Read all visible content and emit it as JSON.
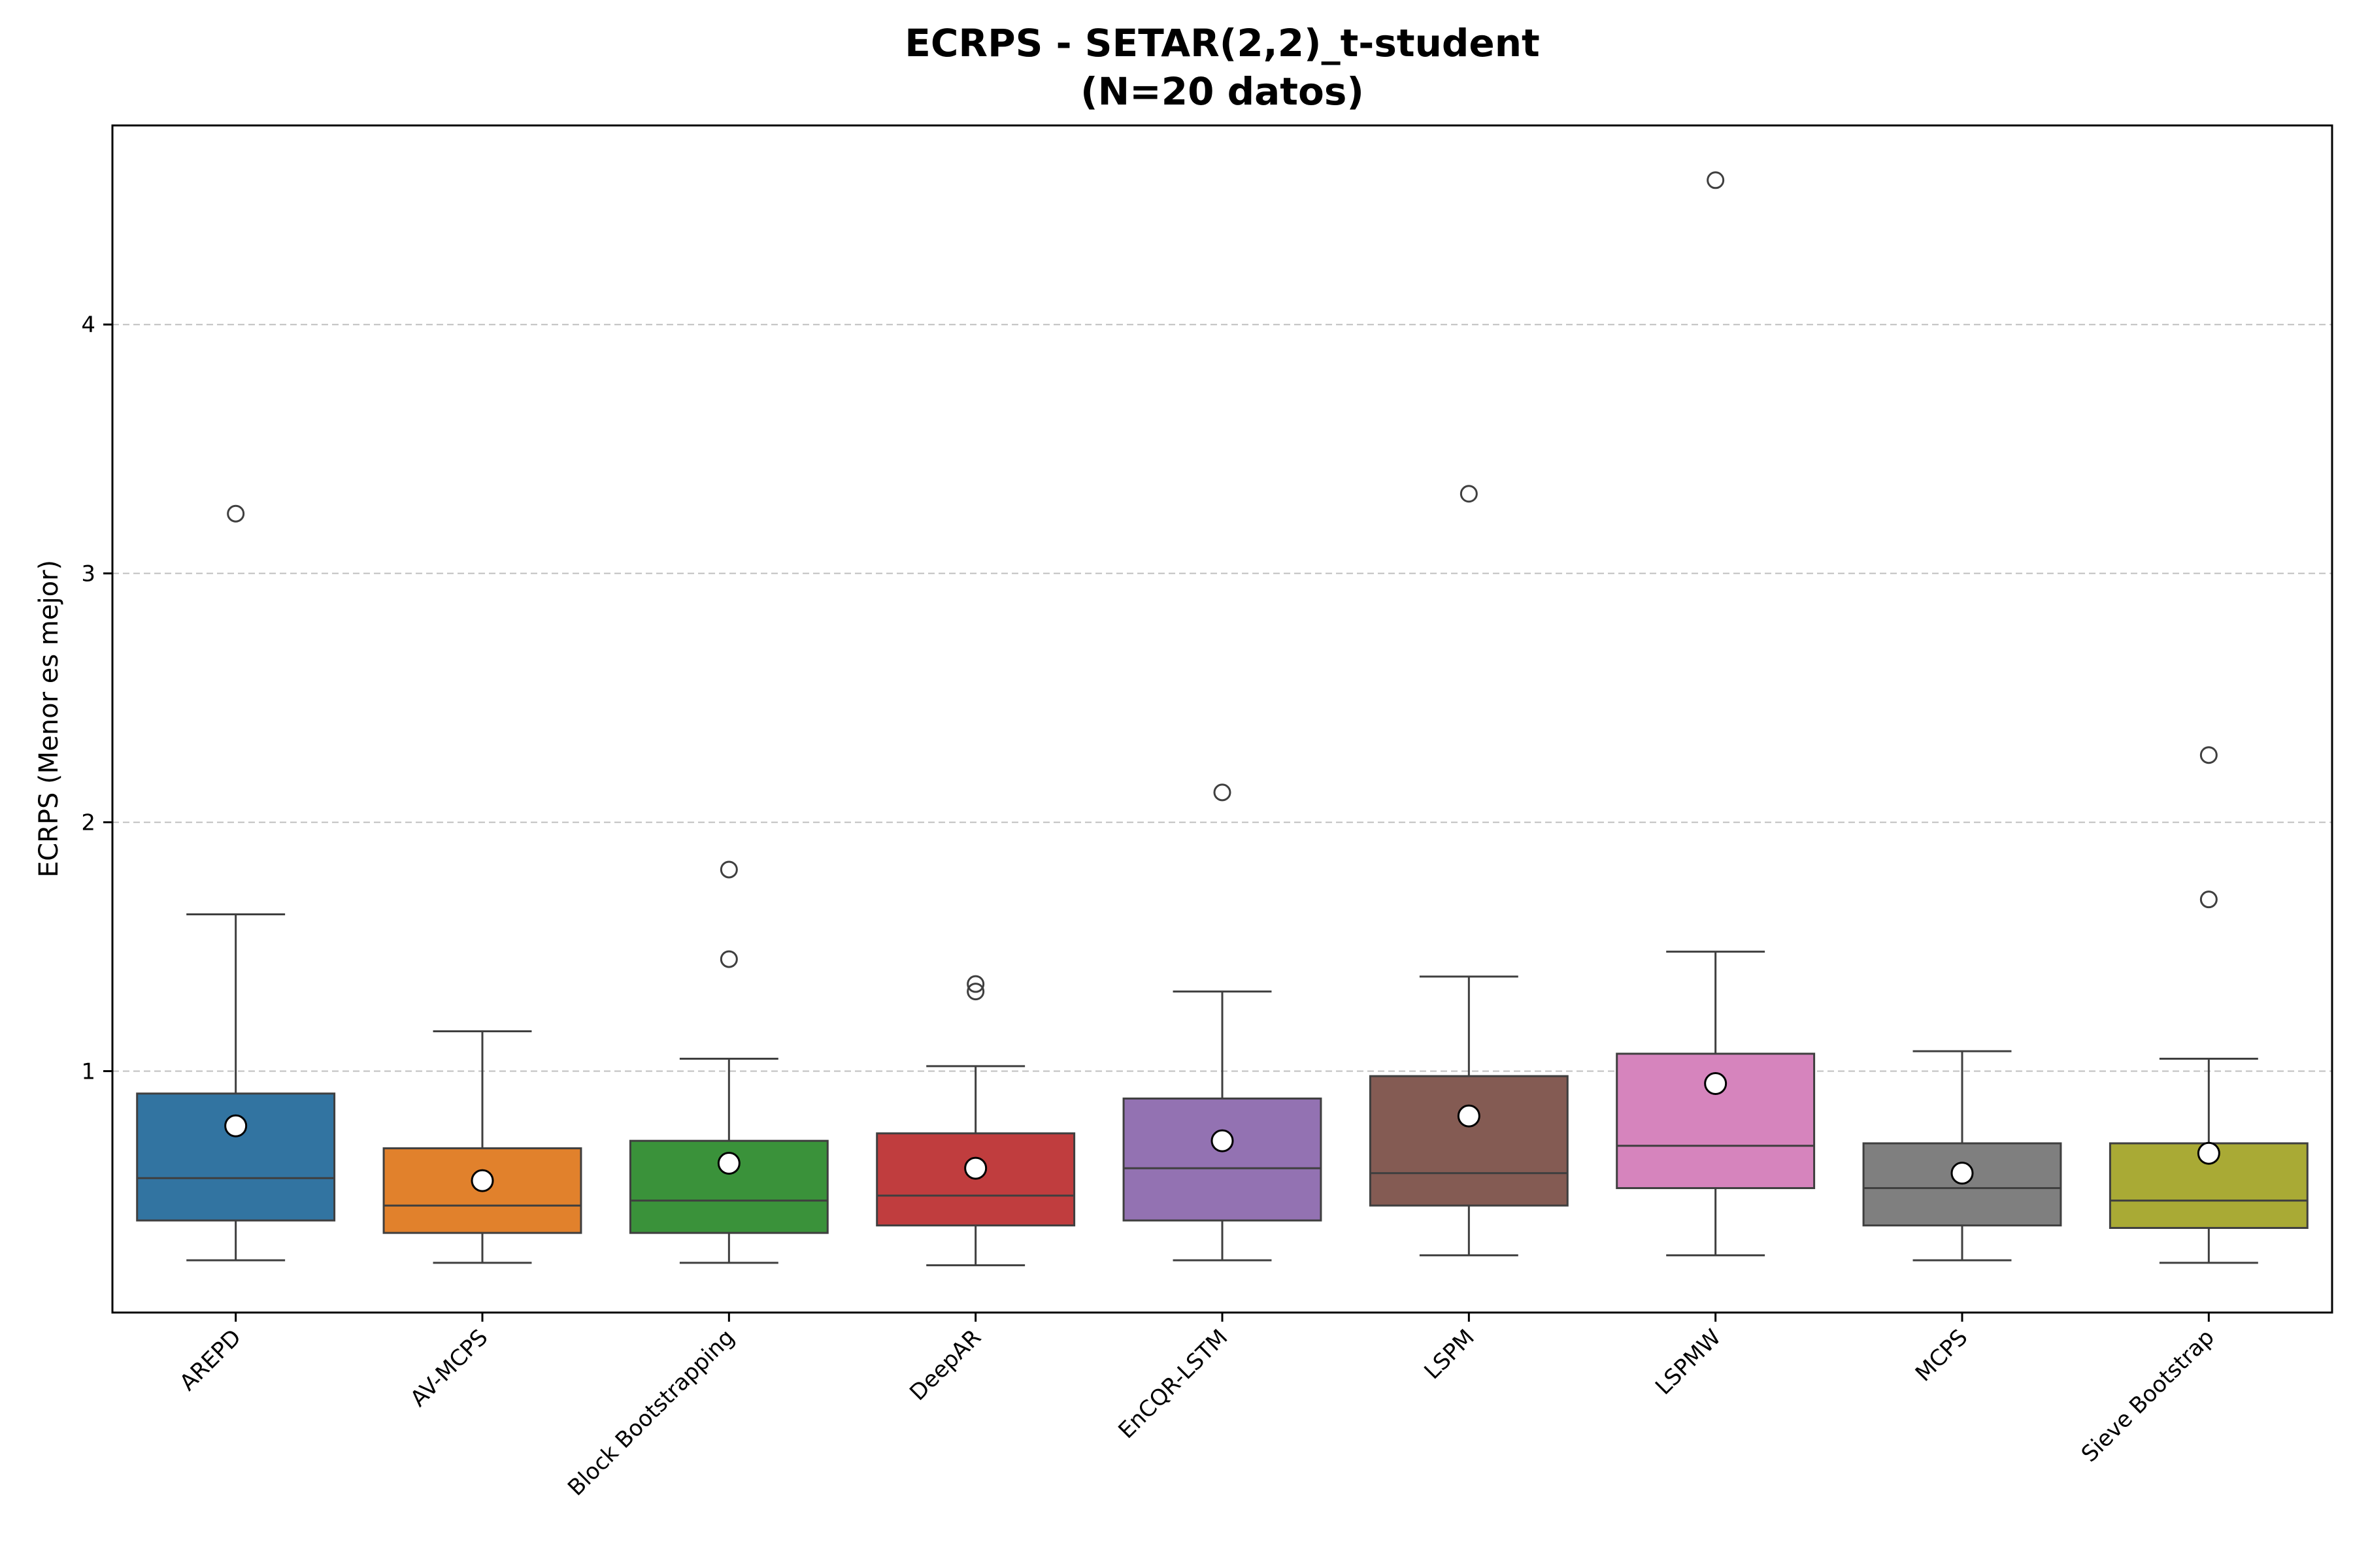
{
  "chart_data": {
    "type": "box",
    "title_lines": [
      "ECRPS - SETAR(2,2)_t-student",
      "(N=20 datos)"
    ],
    "xlabel": "",
    "ylabel": "ECRPS (Menor es mejor)",
    "ylim": [
      0.03,
      4.8
    ],
    "yticks": [
      1,
      2,
      3,
      4
    ],
    "grid": "y-dashed",
    "categories": [
      "AREPD",
      "AV-MCPS",
      "Block Bootstrapping",
      "DeepAR",
      "EnCQR-LSTM",
      "LSPM",
      "LSPMW",
      "MCPS",
      "Sieve Bootstrap"
    ],
    "boxes": [
      {
        "name": "AREPD",
        "color": "#3274a1",
        "whisker_low": 0.24,
        "q1": 0.4,
        "median": 0.57,
        "q3": 0.91,
        "whisker_high": 1.63,
        "mean": 0.78,
        "outliers": [
          3.24
        ]
      },
      {
        "name": "AV-MCPS",
        "color": "#e1812c",
        "whisker_low": 0.23,
        "q1": 0.35,
        "median": 0.46,
        "q3": 0.69,
        "whisker_high": 1.16,
        "mean": 0.56,
        "outliers": []
      },
      {
        "name": "Block Bootstrapping",
        "color": "#3a923a",
        "whisker_low": 0.23,
        "q1": 0.35,
        "median": 0.48,
        "q3": 0.72,
        "whisker_high": 1.05,
        "mean": 0.63,
        "outliers": [
          1.45,
          1.81
        ]
      },
      {
        "name": "DeepAR",
        "color": "#c03d3e",
        "whisker_low": 0.22,
        "q1": 0.38,
        "median": 0.5,
        "q3": 0.75,
        "whisker_high": 1.02,
        "mean": 0.61,
        "outliers": [
          1.32,
          1.35
        ]
      },
      {
        "name": "EnCQR-LSTM",
        "color": "#9372b2",
        "whisker_low": 0.24,
        "q1": 0.4,
        "median": 0.61,
        "q3": 0.89,
        "whisker_high": 1.32,
        "mean": 0.72,
        "outliers": [
          2.12
        ]
      },
      {
        "name": "LSPM",
        "color": "#845b53",
        "whisker_low": 0.26,
        "q1": 0.46,
        "median": 0.59,
        "q3": 0.98,
        "whisker_high": 1.38,
        "mean": 0.82,
        "outliers": [
          3.32
        ]
      },
      {
        "name": "LSPMW",
        "color": "#d684bd",
        "whisker_low": 0.26,
        "q1": 0.53,
        "median": 0.7,
        "q3": 1.07,
        "whisker_high": 1.48,
        "mean": 0.95,
        "outliers": [
          4.58
        ]
      },
      {
        "name": "MCPS",
        "color": "#7f7f7f",
        "whisker_low": 0.24,
        "q1": 0.38,
        "median": 0.53,
        "q3": 0.71,
        "whisker_high": 1.08,
        "mean": 0.59,
        "outliers": []
      },
      {
        "name": "Sieve Bootstrap",
        "color": "#a9aa35",
        "whisker_low": 0.23,
        "q1": 0.37,
        "median": 0.48,
        "q3": 0.71,
        "whisker_high": 1.05,
        "mean": 0.67,
        "outliers": [
          1.69,
          2.27
        ]
      }
    ]
  }
}
